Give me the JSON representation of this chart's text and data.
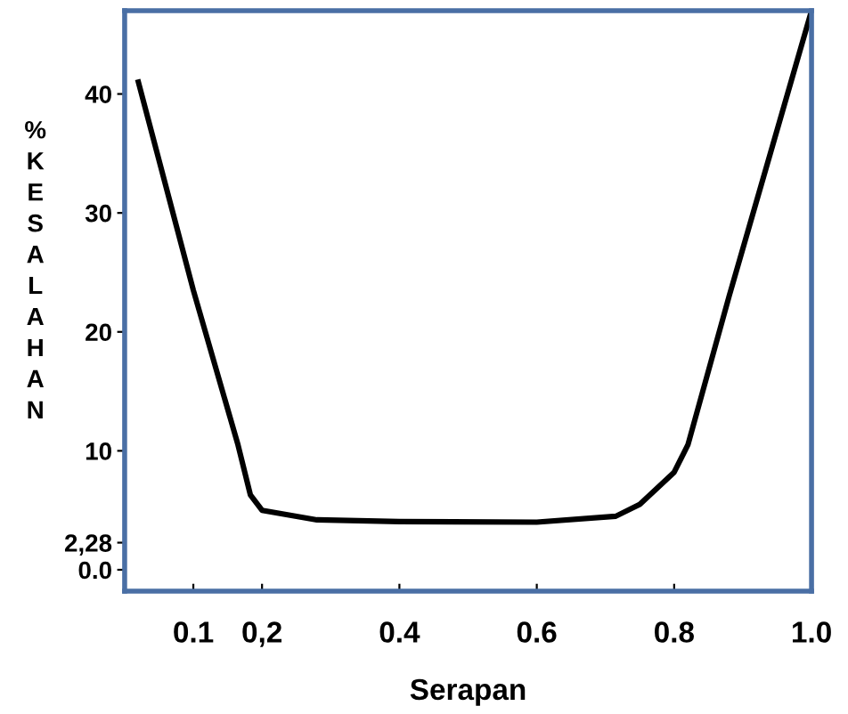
{
  "chart_data": {
    "type": "line",
    "xlabel": "Serapan",
    "ylabel": "%KESALAHAN",
    "x": [
      0.02,
      0.1,
      0.165,
      0.183,
      0.2,
      0.28,
      0.4,
      0.6,
      0.715,
      0.75,
      0.8,
      0.82,
      0.88,
      0.94,
      1.0
    ],
    "series": [
      {
        "color": "#000000",
        "values": [
          41,
          23.5,
          10.5,
          6.3,
          5,
          4.2,
          4.05,
          4,
          4.5,
          5.5,
          8.2,
          10.5,
          23,
          35,
          47
        ]
      }
    ],
    "xlim": [
      0.0,
      1.0
    ],
    "ylim": [
      -1.8,
      47
    ],
    "xticks": [
      0.1,
      {
        "value": 0.2,
        "label": "0,2"
      },
      0.4,
      0.6,
      0.8,
      {
        "value": 1.0,
        "label": "1.0"
      }
    ],
    "yticks": [
      {
        "value": 0,
        "label": "0.0"
      },
      {
        "value": 2.28,
        "label": "2,28"
      },
      10,
      20,
      30,
      40
    ],
    "grid": false,
    "legend": false,
    "marker": "none",
    "line_style": "solid"
  }
}
